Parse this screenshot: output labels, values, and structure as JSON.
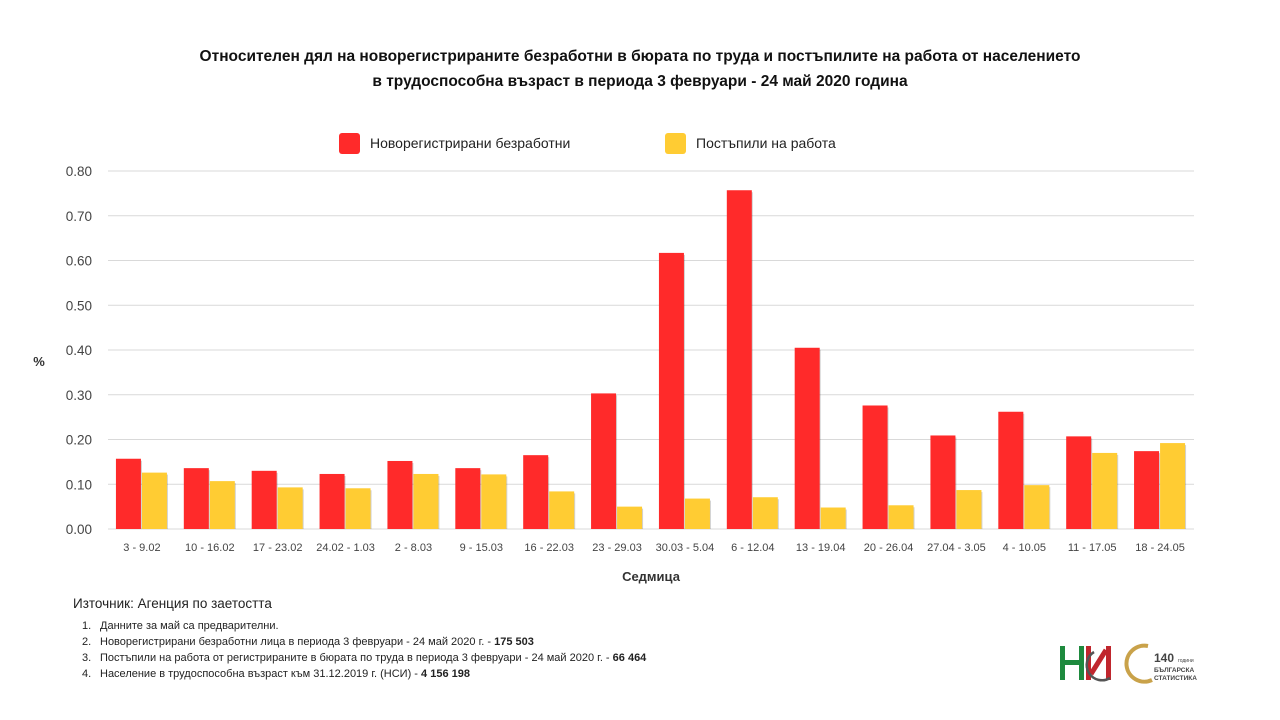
{
  "title": {
    "line1": "Относителен дял на новорегистрираните безработни в бюрата по труда и постъпилите на работа от населението",
    "line2": "в трудоспособна възраст в периода 3 февруари - 24 май 2020 година"
  },
  "legend": {
    "series1": "Новорегистрирани безработни",
    "series2": "Постъпили на работа"
  },
  "colors": {
    "series1": "#ff2a2a",
    "series2": "#ffcc33",
    "grid": "#d9d9d9"
  },
  "source": "Източник: Агенция по заетостта",
  "notes": [
    {
      "num": "1.",
      "text": "Данните за май са предварителни.",
      "bold": ""
    },
    {
      "num": "2.",
      "text": "Новорегистрирани безработни лица в периода 3 февруари - 24 май 2020 г. - ",
      "bold": "175 503"
    },
    {
      "num": "3.",
      "text": "Постъпили на работа от регистрираните в бюрата по труда в периода 3 февруари - 24 май 2020 г. - ",
      "bold": "66 464"
    },
    {
      "num": "4.",
      "text": "Население в трудоспособна възраст към 31.12.2019 г. (НСИ)  - ",
      "bold": "4 156 198"
    }
  ],
  "logos": {
    "nsi": "НСИ",
    "anniv_number": "140",
    "anniv_word": "години",
    "anniv_line1": "БЪЛГАРСКА",
    "anniv_line2": "СТАТИСТИКА"
  },
  "chart_data": {
    "type": "bar",
    "title": "Относителен дял на новорегистрираните безработни в бюрата по труда и постъпилите на работа от населението в трудоспособна възраст в периода 3 февруари - 24 май 2020 година",
    "xlabel": "Седмица",
    "ylabel": "%",
    "ylim": [
      0,
      0.8
    ],
    "yticks": [
      "0.00",
      "0.10",
      "0.20",
      "0.30",
      "0.40",
      "0.50",
      "0.60",
      "0.70",
      "0.80"
    ],
    "grid": true,
    "legend_position": "top",
    "categories": [
      "3 - 9.02",
      "10 - 16.02",
      "17 - 23.02",
      "24.02 - 1.03",
      "2 - 8.03",
      "9 - 15.03",
      "16 - 22.03",
      "23 - 29.03",
      "30.03 - 5.04",
      "6 - 12.04",
      "13 - 19.04",
      "20 - 26.04",
      "27.04 - 3.05",
      "4 - 10.05",
      "11 - 17.05",
      "18 - 24.05"
    ],
    "series": [
      {
        "name": "Новорегистрирани безработни",
        "color": "#ff2a2a",
        "values": [
          0.157,
          0.136,
          0.13,
          0.123,
          0.152,
          0.136,
          0.165,
          0.303,
          0.617,
          0.757,
          0.405,
          0.276,
          0.209,
          0.262,
          0.207,
          0.174
        ]
      },
      {
        "name": "Постъпили на работа",
        "color": "#ffcc33",
        "values": [
          0.126,
          0.107,
          0.093,
          0.091,
          0.123,
          0.122,
          0.084,
          0.05,
          0.068,
          0.071,
          0.048,
          0.053,
          0.087,
          0.098,
          0.17,
          0.192
        ]
      }
    ]
  }
}
